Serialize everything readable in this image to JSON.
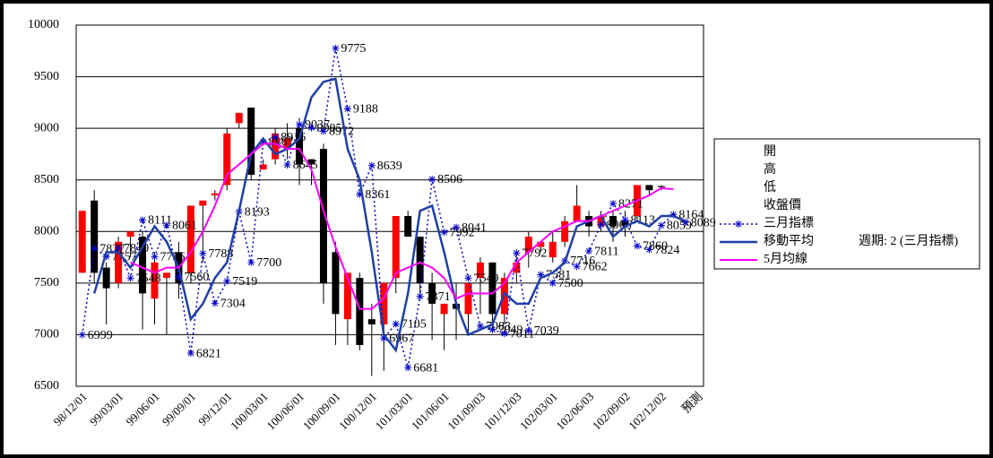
{
  "chart_data": {
    "type": "candlestick",
    "categories": [
      "98/12/01",
      null,
      null,
      "99/03/01",
      null,
      null,
      "99/06/01",
      null,
      null,
      "99/09/01",
      null,
      null,
      "99/12/01",
      null,
      null,
      "100/03/01",
      null,
      null,
      "100/06/01",
      null,
      null,
      "100/09/01",
      null,
      null,
      "100/12/01",
      null,
      null,
      "101/03/01",
      null,
      null,
      "101/06/01",
      null,
      null,
      "101/09/03",
      null,
      null,
      "101/12/03",
      null,
      null,
      "102/03/01",
      null,
      null,
      "102/06/03",
      null,
      null,
      "102/09/02",
      null,
      null,
      "102/12/02",
      null,
      null,
      "預測"
    ],
    "open": [
      7600,
      8300,
      7650,
      7500,
      7950,
      7950,
      7350,
      7550,
      7800,
      7600,
      8250,
      8350,
      8450,
      9050,
      9200,
      8600,
      8700,
      8800,
      9000,
      8700,
      8800,
      7800,
      7150,
      7550,
      7150,
      7100,
      7550,
      8150,
      7950,
      7500,
      7200,
      7300,
      7200,
      7550,
      7700,
      7200,
      7600,
      7800,
      7850,
      7750,
      7900,
      8100,
      8150,
      8050,
      8150,
      8100,
      8150,
      8450,
      8440,
      null,
      null,
      null
    ],
    "high": [
      8200,
      8400,
      7700,
      7950,
      8000,
      8000,
      7800,
      7600,
      7900,
      8250,
      8300,
      8400,
      9000,
      9150,
      9200,
      8700,
      9000,
      9050,
      9100,
      8700,
      8850,
      7900,
      7600,
      7600,
      7300,
      7500,
      8150,
      8200,
      7950,
      7600,
      7300,
      7500,
      7500,
      7750,
      7700,
      7600,
      7750,
      8000,
      7900,
      8000,
      8150,
      8450,
      8200,
      8200,
      8200,
      8200,
      8450,
      8450,
      8450,
      null,
      null,
      null
    ],
    "low": [
      7600,
      7500,
      7100,
      7450,
      7750,
      7050,
      7100,
      7000,
      7350,
      7500,
      7700,
      8300,
      8400,
      9000,
      8500,
      8600,
      8650,
      8700,
      8450,
      8450,
      7300,
      6900,
      6900,
      6850,
      6600,
      6650,
      7400,
      7950,
      7350,
      6950,
      6850,
      6950,
      7000,
      7200,
      7100,
      7100,
      7500,
      7650,
      7800,
      7700,
      7850,
      8100,
      7950,
      8000,
      7900,
      7950,
      8100,
      8350,
      8400,
      null,
      null,
      null
    ],
    "close": [
      8200,
      7600,
      7450,
      7900,
      8000,
      7400,
      7700,
      7600,
      7500,
      8250,
      8300,
      8370,
      8950,
      9150,
      8550,
      8650,
      8950,
      8900,
      8650,
      8650,
      7500,
      7200,
      7600,
      6900,
      7100,
      7500,
      8150,
      7950,
      7500,
      7300,
      7300,
      7250,
      7500,
      7700,
      7200,
      7550,
      7700,
      7950,
      7900,
      7900,
      8100,
      8250,
      8050,
      8150,
      8050,
      8050,
      8450,
      8400,
      8430,
      null,
      null,
      null
    ],
    "legend": [
      "開",
      "高",
      "低",
      "收盤價"
    ],
    "series": [
      {
        "name": "三月指標",
        "color": "#0000cc",
        "values": [
          6999,
          7837,
          7757,
          7840,
          7548,
          8111,
          7756,
          8061,
          7560,
          6821,
          7788,
          7304,
          7519,
          8193,
          7700,
          8867,
          8916,
          8645,
          9037,
          9005,
          8972,
          9775,
          9188,
          8361,
          8639,
          6967,
          7105,
          6681,
          7371,
          8506,
          7992,
          8041,
          7549,
          7083,
          7049,
          7011,
          7792,
          7039,
          7581,
          7500,
          7716,
          7662,
          7811,
          8066,
          8271,
          8113,
          7860,
          7824,
          8059,
          8164,
          8089,
          null
        ]
      },
      {
        "name": "移動平均",
        "color": "#1f3fa8",
        "values": [
          null,
          7400,
          7800,
          7800,
          7650,
          7850,
          8050,
          7900,
          7650,
          7150,
          7300,
          7550,
          7700,
          8200,
          8750,
          8900,
          8750,
          8800,
          8900,
          9300,
          9450,
          9480,
          8800,
          8500,
          7800,
          7000,
          6850,
          7400,
          8200,
          8250,
          7800,
          7300,
          7000,
          7050,
          7100,
          7400,
          7300,
          7300,
          7550,
          7600,
          7700,
          8050,
          8100,
          8150,
          7950,
          8050,
          8100,
          8050,
          8150,
          8150,
          8100,
          null
        ]
      },
      {
        "name": "5月均線",
        "color": "#ff00ff",
        "values": [
          null,
          null,
          null,
          null,
          7700,
          7650,
          7600,
          7650,
          7650,
          7800,
          8000,
          8250,
          8550,
          8650,
          8750,
          8850,
          8850,
          8800,
          8800,
          8600,
          8200,
          7850,
          7550,
          7250,
          7250,
          7350,
          7600,
          7650,
          7700,
          7650,
          7550,
          7350,
          7400,
          7400,
          7400,
          7500,
          7700,
          7800,
          7900,
          8000,
          8050,
          8100,
          8100,
          8150,
          8200,
          8250,
          8300,
          8350,
          8420,
          8410,
          null,
          null
        ]
      }
    ],
    "ma_period": "週期: 2 (三月指標)",
    "ylim": [
      6500,
      10000
    ],
    "yticks": [
      6500,
      7000,
      7500,
      8000,
      8500,
      9000,
      9500,
      10000
    ],
    "grid": true
  }
}
